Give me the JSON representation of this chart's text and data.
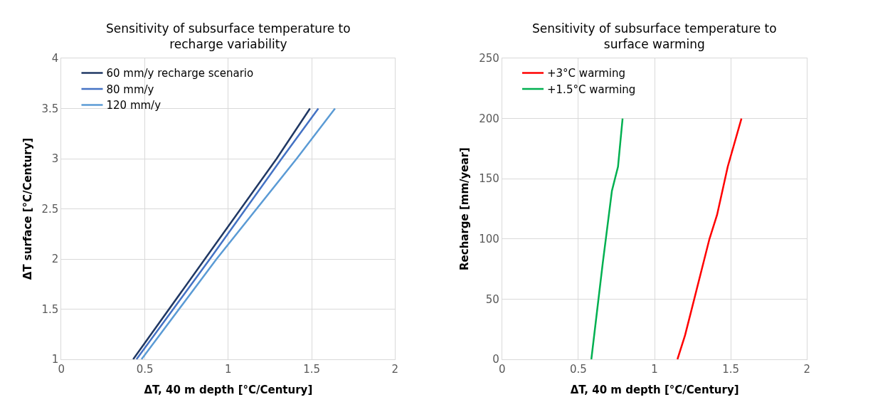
{
  "chart_data": [
    {
      "type": "line",
      "title": "Sensitivity of subsurface temperature to recharge variability",
      "xlabel": "ΔT, 40 m depth [°C/Century]",
      "ylabel": "ΔT surface [°C/Century]",
      "xlim": [
        0,
        2
      ],
      "xticks": [
        0,
        0.5,
        1,
        1.5,
        2
      ],
      "ylim": [
        1,
        4
      ],
      "yticks": [
        1,
        1.5,
        2,
        2.5,
        3,
        3.5,
        4
      ],
      "grid": true,
      "legend": "top left",
      "series": [
        {
          "name": "60 mm/y recharge scenario",
          "color": "#203864",
          "x": [
            0.43,
            0.86,
            1.29,
            1.49
          ],
          "values": [
            1,
            2,
            3,
            3.5
          ]
        },
        {
          "name": "80 mm/y",
          "color": "#4472c4",
          "x": [
            0.45,
            0.89,
            1.32,
            1.54
          ],
          "values": [
            1,
            2,
            3,
            3.5
          ]
        },
        {
          "name": "120 mm/y",
          "color": "#5b9bd5",
          "x": [
            0.48,
            0.93,
            1.41,
            1.64
          ],
          "values": [
            1,
            2,
            3,
            3.5
          ]
        }
      ]
    },
    {
      "type": "line",
      "title": "Sensitivity of subsurface temperature to surface warming",
      "xlabel": "ΔT, 40 m depth [°C/Century]",
      "ylabel": "Recharge [mm/year]",
      "xlim": [
        0,
        2
      ],
      "xticks": [
        0,
        0.5,
        1,
        1.5,
        2
      ],
      "ylim": [
        0,
        250
      ],
      "yticks": [
        0,
        50,
        100,
        150,
        200,
        250
      ],
      "grid": true,
      "legend": "top left",
      "series": [
        {
          "name": "+3°C warming",
          "color": "#ff0000",
          "x": [
            1.15,
            1.2,
            1.24,
            1.36,
            1.41,
            1.48,
            1.57
          ],
          "values": [
            0,
            20,
            40,
            100,
            120,
            160,
            200
          ]
        },
        {
          "name": "+1.5°C warming",
          "color": "#00b050",
          "x": [
            0.585,
            0.66,
            0.68,
            0.72,
            0.76,
            0.79
          ],
          "values": [
            0,
            80,
            100,
            140,
            160,
            200
          ]
        }
      ]
    }
  ]
}
